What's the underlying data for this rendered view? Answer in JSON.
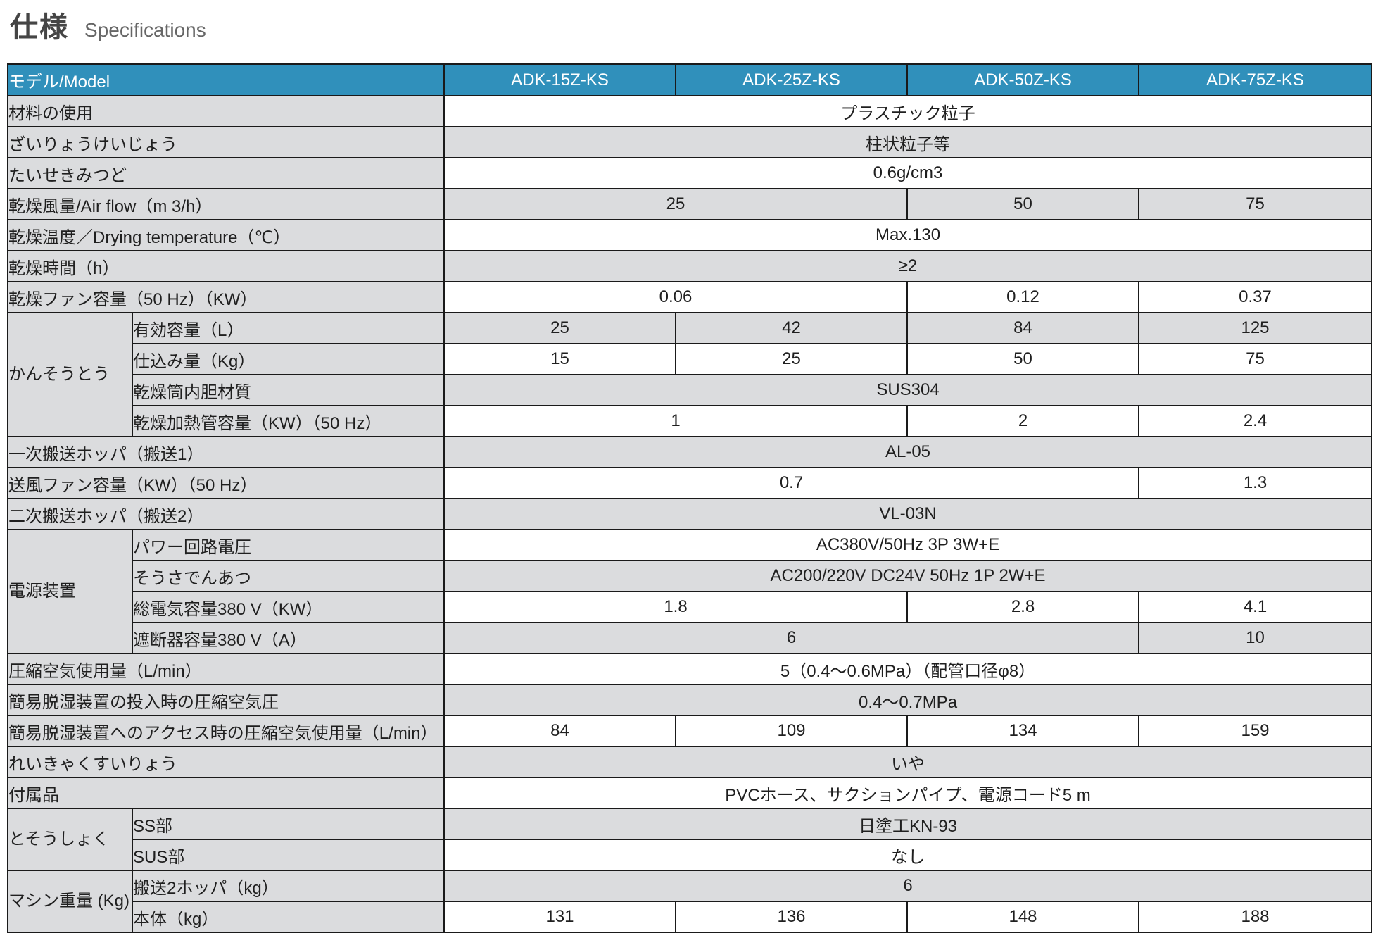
{
  "title": {
    "ja": "仕様",
    "en": "Specifications"
  },
  "colors": {
    "header_blue": "#3090BB",
    "stripe_gray": "#DBDCDE",
    "border": "#1A1A1A",
    "text": "#1F1F1F"
  },
  "table": {
    "header": {
      "model_label": "モデル/Model",
      "models": [
        "ADK-15Z-KS",
        "ADK-25Z-KS",
        "ADK-50Z-KS",
        "ADK-75Z-KS"
      ]
    },
    "rows": [
      {
        "label": "材料の使用",
        "cells": [
          {
            "text": "プラスチック粒子",
            "span": 4
          }
        ]
      },
      {
        "label": "ざいりょうけいじょう",
        "cells": [
          {
            "text": "柱状粒子等",
            "span": 4
          }
        ]
      },
      {
        "label": "たいせきみつど",
        "cells": [
          {
            "text": "0.6g/cm3",
            "span": 4
          }
        ]
      },
      {
        "label": "乾燥風量/Air flow（m 3/h）",
        "cells": [
          {
            "text": "25",
            "span": 2
          },
          {
            "text": "50",
            "span": 1
          },
          {
            "text": "75",
            "span": 1
          }
        ]
      },
      {
        "label": "乾燥温度／Drying temperature（℃）",
        "cells": [
          {
            "text": "Max.130",
            "span": 4
          }
        ]
      },
      {
        "label": "乾燥時間（h）",
        "cells": [
          {
            "text": "≥2",
            "span": 4
          }
        ]
      },
      {
        "label": "乾燥ファン容量（50 Hz）（KW）",
        "cells": [
          {
            "text": "0.06",
            "span": 2
          },
          {
            "text": "0.12",
            "span": 1
          },
          {
            "text": "0.37",
            "span": 1
          }
        ]
      },
      {
        "group": "かんそうとう",
        "group_rowspan": 4,
        "sub": true,
        "label": "有効容量（L）",
        "cells": [
          {
            "text": "25",
            "span": 1
          },
          {
            "text": "42",
            "span": 1
          },
          {
            "text": "84",
            "span": 1
          },
          {
            "text": "125",
            "span": 1
          }
        ]
      },
      {
        "sub": true,
        "label": "仕込み量（Kg）",
        "cells": [
          {
            "text": "15",
            "span": 1
          },
          {
            "text": "25",
            "span": 1
          },
          {
            "text": "50",
            "span": 1
          },
          {
            "text": "75",
            "span": 1
          }
        ]
      },
      {
        "sub": true,
        "label": "乾燥筒内胆材質",
        "cells": [
          {
            "text": "SUS304",
            "span": 4
          }
        ]
      },
      {
        "sub": true,
        "label": "乾燥加熱管容量（KW）（50 Hz）",
        "cells": [
          {
            "text": "1",
            "span": 2
          },
          {
            "text": "2",
            "span": 1
          },
          {
            "text": "2.4",
            "span": 1
          }
        ]
      },
      {
        "label": "一次搬送ホッパ（搬送1）",
        "cells": [
          {
            "text": "AL-05",
            "span": 4
          }
        ]
      },
      {
        "label": "送風ファン容量（KW）（50 Hz）",
        "cells": [
          {
            "text": "0.7",
            "span": 3
          },
          {
            "text": "1.3",
            "span": 1
          }
        ]
      },
      {
        "label": "二次搬送ホッパ（搬送2）",
        "cells": [
          {
            "text": "VL-03N",
            "span": 4
          }
        ]
      },
      {
        "group": "電源装置",
        "group_rowspan": 4,
        "sub": true,
        "label": "パワー回路電圧",
        "cells": [
          {
            "text": "AC380V/50Hz 3P 3W+E",
            "span": 4
          }
        ]
      },
      {
        "sub": true,
        "label": "そうさでんあつ",
        "cells": [
          {
            "text": "AC200/220V DC24V 50Hz 1P 2W+E",
            "span": 4
          }
        ]
      },
      {
        "sub": true,
        "label": "総電気容量380 V（KW）",
        "cells": [
          {
            "text": "1.8",
            "span": 2
          },
          {
            "text": "2.8",
            "span": 1
          },
          {
            "text": "4.1",
            "span": 1
          }
        ]
      },
      {
        "sub": true,
        "label": "遮断器容量380 V（A）",
        "cells": [
          {
            "text": "6",
            "span": 3
          },
          {
            "text": "10",
            "span": 1
          }
        ]
      },
      {
        "label": "圧縮空気使用量（L/min）",
        "cells": [
          {
            "text": "5（0.4〜0.6MPa）（配管口径φ8）",
            "span": 4
          }
        ]
      },
      {
        "label": "簡易脱湿装置の投入時の圧縮空気圧",
        "cells": [
          {
            "text": "0.4〜0.7MPa",
            "span": 4
          }
        ]
      },
      {
        "label": "簡易脱湿装置へのアクセス時の圧縮空気使用量（L/min）",
        "cells": [
          {
            "text": "84",
            "span": 1
          },
          {
            "text": "109",
            "span": 1
          },
          {
            "text": "134",
            "span": 1
          },
          {
            "text": "159",
            "span": 1
          }
        ]
      },
      {
        "label": "れいきゃくすいりょう",
        "cells": [
          {
            "text": "いや",
            "span": 4
          }
        ]
      },
      {
        "label": "付属品",
        "cells": [
          {
            "text": "PVCホース、サクションパイプ、電源コード5 m",
            "span": 4
          }
        ]
      },
      {
        "group": "とそうしょく",
        "group_rowspan": 2,
        "sub": true,
        "label": "SS部",
        "cells": [
          {
            "text": "日塗工KN-93",
            "span": 4
          }
        ]
      },
      {
        "sub": true,
        "label": "SUS部",
        "cells": [
          {
            "text": "なし",
            "span": 4
          }
        ]
      },
      {
        "group": "マシン重量 (Kg)",
        "group_rowspan": 2,
        "sub": true,
        "label": "搬送2ホッパ（kg）",
        "cells": [
          {
            "text": "6",
            "span": 4
          }
        ]
      },
      {
        "sub": true,
        "label": "本体（kg）",
        "cells": [
          {
            "text": "131",
            "span": 1
          },
          {
            "text": "136",
            "span": 1
          },
          {
            "text": "148",
            "span": 1
          },
          {
            "text": "188",
            "span": 1
          }
        ]
      }
    ]
  }
}
